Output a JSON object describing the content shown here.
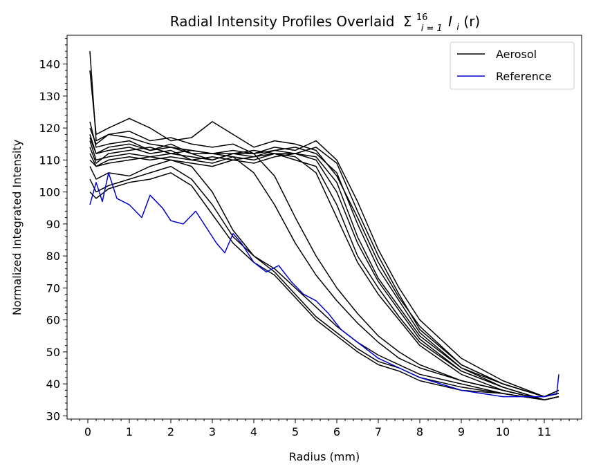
{
  "chart_data": {
    "type": "line",
    "title": "Radial Intensity Profiles Overlaid",
    "title_math_base": "Σ",
    "title_math_sup": "16",
    "title_math_sub": "i = 1",
    "title_math_term": "I",
    "title_math_term_sub": "i",
    "title_math_arg": "(r)",
    "xlabel": "Radius (mm)",
    "ylabel": "Normalized Integrated Intensity",
    "xlim": [
      -0.5,
      11.9
    ],
    "ylim": [
      29,
      149
    ],
    "xticks": [
      0,
      1,
      2,
      3,
      4,
      5,
      6,
      7,
      8,
      9,
      10,
      11
    ],
    "yticks": [
      30,
      40,
      50,
      60,
      70,
      80,
      90,
      100,
      110,
      120,
      130,
      140
    ],
    "grid": false,
    "legend_position": "top-right",
    "legend": [
      {
        "label": "Aerosol",
        "color": "#000000"
      },
      {
        "label": "Reference",
        "color": "#0000cc"
      }
    ],
    "series": [
      {
        "name": "Aerosol",
        "color": "#000000",
        "x": [
          0.05,
          0.2,
          0.5,
          1.0,
          1.5,
          2.0,
          2.5,
          3.0,
          3.5,
          4.0,
          4.5,
          5.0,
          5.5,
          6.0,
          6.5,
          7.0,
          7.5,
          8.0,
          9.0,
          10.0,
          11.0,
          11.35
        ],
        "y": [
          138,
          118,
          120,
          123,
          120,
          116,
          117,
          122,
          118,
          114,
          116,
          115,
          113,
          105,
          92,
          78,
          67,
          58,
          46,
          40,
          36,
          38
        ]
      },
      {
        "name": "Aerosol",
        "color": "#000000",
        "x": [
          0.05,
          0.2,
          0.5,
          1.0,
          1.5,
          2.0,
          2.5,
          3.0,
          3.5,
          4.0,
          4.5,
          5.0,
          5.5,
          6.0,
          6.5,
          7.0,
          7.5,
          8.0,
          9.0,
          10.0,
          11.0,
          11.35
        ],
        "y": [
          144,
          116,
          118,
          117,
          115,
          114,
          113,
          112,
          113,
          112,
          114,
          113,
          116,
          110,
          97,
          82,
          70,
          60,
          48,
          41,
          36,
          38
        ]
      },
      {
        "name": "Aerosol",
        "color": "#000000",
        "x": [
          0.05,
          0.2,
          0.5,
          1.0,
          1.5,
          2.0,
          2.5,
          3.0,
          3.5,
          4.0,
          4.5,
          5.0,
          5.5,
          6.0,
          6.5,
          7.0,
          7.5,
          8.0,
          9.0,
          10.0,
          11.0,
          11.35
        ],
        "y": [
          122,
          114,
          115,
          116,
          113,
          115,
          112,
          110,
          112,
          111,
          112,
          112,
          114,
          109,
          94,
          80,
          68,
          57,
          46,
          40,
          36,
          37
        ]
      },
      {
        "name": "Aerosol",
        "color": "#000000",
        "x": [
          0.05,
          0.2,
          0.5,
          1.0,
          1.5,
          2.0,
          2.5,
          3.0,
          3.5,
          4.0,
          4.5,
          5.0,
          5.5,
          6.0,
          6.5,
          7.0,
          7.5,
          8.0,
          9.0,
          10.0,
          11.0,
          11.35
        ],
        "y": [
          118,
          112,
          113,
          114,
          112,
          113,
          110,
          111,
          110,
          111,
          113,
          114,
          112,
          106,
          90,
          76,
          66,
          56,
          45,
          39,
          35,
          36
        ]
      },
      {
        "name": "Aerosol",
        "color": "#000000",
        "x": [
          0.05,
          0.2,
          0.5,
          1.0,
          1.5,
          2.0,
          2.5,
          3.0,
          3.5,
          4.0,
          4.5,
          5.0,
          5.5,
          6.0,
          6.5,
          7.0,
          7.5,
          8.0,
          9.0,
          10.0,
          11.0,
          11.35
        ],
        "y": [
          116,
          110,
          111,
          112,
          111,
          110,
          109,
          108,
          110,
          109,
          111,
          112,
          111,
          103,
          86,
          73,
          64,
          55,
          45,
          40,
          36,
          37
        ]
      },
      {
        "name": "Aerosol",
        "color": "#000000",
        "x": [
          0.05,
          0.2,
          0.5,
          1.0,
          1.5,
          2.0,
          2.5,
          3.0,
          3.5,
          4.0,
          4.5,
          5.0,
          5.5,
          6.0,
          6.5,
          7.0,
          7.5,
          8.0,
          9.0,
          10.0,
          11.0,
          11.35
        ],
        "y": [
          114,
          109,
          112,
          113,
          114,
          112,
          111,
          110,
          112,
          112,
          113,
          112,
          110,
          100,
          84,
          72,
          63,
          54,
          44,
          39,
          35,
          36
        ]
      },
      {
        "name": "Aerosol",
        "color": "#000000",
        "x": [
          0.05,
          0.2,
          0.5,
          1.0,
          1.5,
          2.0,
          2.5,
          3.0,
          3.5,
          4.0,
          4.5,
          5.0,
          5.5,
          6.0,
          6.5,
          7.0,
          7.5,
          8.0,
          9.0,
          10.0,
          11.0,
          11.35
        ],
        "y": [
          112,
          108,
          110,
          111,
          110,
          111,
          110,
          109,
          111,
          110,
          112,
          110,
          108,
          96,
          80,
          70,
          61,
          53,
          44,
          39,
          35,
          36
        ]
      },
      {
        "name": "Aerosol",
        "color": "#000000",
        "x": [
          0.05,
          0.2,
          0.5,
          1.0,
          1.5,
          2.0,
          2.5,
          3.0,
          3.5,
          4.0,
          4.5,
          5.0,
          5.5,
          6.0,
          6.5,
          7.0,
          7.5,
          8.0,
          9.0,
          10.0,
          11.0,
          11.35
        ],
        "y": [
          110,
          108,
          109,
          110,
          111,
          112,
          113,
          112,
          112,
          113,
          112,
          111,
          106,
          92,
          78,
          68,
          60,
          52,
          43,
          38,
          35,
          36
        ]
      },
      {
        "name": "Aerosol",
        "color": "#000000",
        "x": [
          0.05,
          0.2,
          0.5,
          1.0,
          1.5,
          2.0,
          2.5,
          3.0,
          3.5,
          4.0,
          4.5,
          5.0,
          5.5,
          6.0,
          6.5,
          7.0,
          7.5,
          8.0,
          9.0,
          10.0,
          11.0,
          11.35
        ],
        "y": [
          120,
          115,
          118,
          119,
          116,
          117,
          115,
          114,
          115,
          112,
          105,
          92,
          80,
          70,
          62,
          55,
          50,
          46,
          41,
          38,
          35,
          36
        ]
      },
      {
        "name": "Aerosol",
        "color": "#000000",
        "x": [
          0.05,
          0.2,
          0.5,
          1.0,
          1.5,
          2.0,
          2.5,
          3.0,
          3.5,
          4.0,
          4.5,
          5.0,
          5.5,
          6.0,
          6.5,
          7.0,
          7.5,
          8.0,
          9.0,
          10.0,
          11.0,
          11.35
        ],
        "y": [
          117,
          112,
          114,
          115,
          113,
          114,
          112,
          112,
          111,
          106,
          96,
          84,
          74,
          66,
          59,
          53,
          48,
          45,
          41,
          38,
          35,
          36
        ]
      },
      {
        "name": "Aerosol",
        "color": "#000000",
        "x": [
          0.05,
          0.2,
          0.5,
          1.0,
          1.5,
          2.0,
          2.5,
          3.0,
          3.5,
          4.0,
          4.5,
          5.0,
          5.5,
          6.0,
          6.5,
          7.0,
          7.5,
          8.0,
          9.0,
          10.0,
          11.0,
          11.35
        ],
        "y": [
          108,
          104,
          106,
          105,
          108,
          110,
          108,
          100,
          88,
          80,
          76,
          70,
          64,
          58,
          53,
          49,
          46,
          43,
          40,
          37,
          35,
          36
        ]
      },
      {
        "name": "Aerosol",
        "color": "#000000",
        "x": [
          0.05,
          0.2,
          0.5,
          1.0,
          1.5,
          2.0,
          2.5,
          3.0,
          3.5,
          4.0,
          4.5,
          5.0,
          5.5,
          6.0,
          6.5,
          7.0,
          7.5,
          8.0,
          9.0,
          10.0,
          11.0,
          11.35
        ],
        "y": [
          104,
          100,
          102,
          104,
          106,
          108,
          104,
          96,
          86,
          80,
          75,
          68,
          61,
          56,
          51,
          47,
          45,
          42,
          39,
          37,
          35,
          36
        ]
      },
      {
        "name": "Aerosol",
        "color": "#000000",
        "x": [
          0.05,
          0.2,
          0.5,
          1.0,
          1.5,
          2.0,
          2.5,
          3.0,
          3.5,
          4.0,
          4.5,
          5.0,
          5.5,
          6.0,
          6.5,
          7.0,
          7.5,
          8.0,
          9.0,
          10.0,
          11.0,
          11.35
        ],
        "y": [
          100,
          98,
          101,
          103,
          104,
          106,
          102,
          93,
          84,
          78,
          74,
          67,
          60,
          55,
          50,
          46,
          44,
          41,
          38,
          37,
          35,
          36
        ]
      },
      {
        "name": "Reference",
        "color": "#0000cc",
        "x": [
          0.05,
          0.2,
          0.35,
          0.5,
          0.7,
          1.0,
          1.3,
          1.5,
          1.8,
          2.0,
          2.3,
          2.6,
          2.9,
          3.1,
          3.3,
          3.5,
          3.7,
          4.0,
          4.3,
          4.6,
          4.9,
          5.2,
          5.5,
          5.8,
          6.1,
          6.5,
          7.0,
          7.5,
          8.0,
          8.5,
          9.0,
          9.5,
          10.0,
          10.5,
          11.0,
          11.3,
          11.35
        ],
        "y": [
          96,
          103,
          97,
          106,
          98,
          96,
          92,
          99,
          95,
          91,
          90,
          94,
          88,
          84,
          81,
          87,
          84,
          78,
          75,
          77,
          72,
          68,
          66,
          62,
          57,
          53,
          48,
          45,
          42,
          40,
          38,
          37,
          36,
          36,
          36,
          37,
          43
        ]
      }
    ]
  }
}
